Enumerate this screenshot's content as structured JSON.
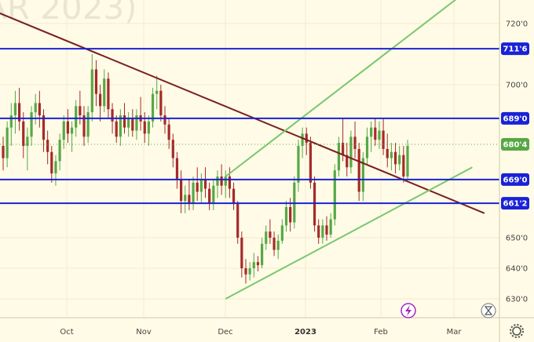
{
  "watermark": "AR 2023)",
  "chart_data": {
    "type": "candlestick",
    "y_ticks": [
      {
        "value": 720,
        "label": "720'0"
      },
      {
        "value": 700,
        "label": "700'0"
      },
      {
        "value": 650,
        "label": "650'0"
      },
      {
        "value": 640,
        "label": "640'0"
      },
      {
        "value": 630,
        "label": "630'0"
      }
    ],
    "ylim": [
      624,
      725
    ],
    "x_ticks": [
      {
        "label": "Oct",
        "bold": false
      },
      {
        "label": "Nov",
        "bold": false
      },
      {
        "label": "Dec",
        "bold": false
      },
      {
        "label": "2023",
        "bold": true
      },
      {
        "label": "Feb",
        "bold": false
      },
      {
        "label": "Mar",
        "bold": false
      }
    ],
    "levels": [
      {
        "value": 711.75,
        "label": "711'6",
        "color": "#1a22d6"
      },
      {
        "value": 689,
        "label": "689'0",
        "color": "#1a22d6"
      },
      {
        "value": 669,
        "label": "669'0",
        "color": "#1a22d6"
      },
      {
        "value": 661.25,
        "label": "661'2",
        "color": "#1a22d6"
      }
    ],
    "last_price": {
      "value": 680.5,
      "label": "680'4",
      "color": "#57a845"
    },
    "colors": {
      "up": "#57a845",
      "down": "#a52a2a",
      "trendline": "#7a1f1f",
      "channel": "#78c86e"
    },
    "ohlc": [
      [
        680,
        683,
        672,
        676
      ],
      [
        676,
        688,
        673,
        686
      ],
      [
        686,
        694,
        680,
        690
      ],
      [
        690,
        698,
        684,
        694
      ],
      [
        694,
        699,
        685,
        688
      ],
      [
        688,
        691,
        676,
        680
      ],
      [
        680,
        686,
        672,
        683
      ],
      [
        683,
        693,
        680,
        691
      ],
      [
        691,
        697,
        687,
        694
      ],
      [
        694,
        698,
        686,
        690
      ],
      [
        690,
        692,
        678,
        682
      ],
      [
        682,
        685,
        674,
        678
      ],
      [
        678,
        680,
        668,
        671
      ],
      [
        671,
        677,
        667,
        675
      ],
      [
        675,
        684,
        672,
        682
      ],
      [
        682,
        690,
        679,
        688
      ],
      [
        688,
        692,
        681,
        684
      ],
      [
        684,
        688,
        678,
        686
      ],
      [
        686,
        695,
        683,
        693
      ],
      [
        693,
        698,
        687,
        690
      ],
      [
        690,
        693,
        680,
        683
      ],
      [
        683,
        693,
        681,
        691
      ],
      [
        691,
        710,
        688,
        705
      ],
      [
        705,
        708,
        693,
        697
      ],
      [
        697,
        700,
        688,
        693
      ],
      [
        693,
        705,
        691,
        702
      ],
      [
        702,
        704,
        689,
        692
      ],
      [
        692,
        694,
        684,
        688
      ],
      [
        688,
        690,
        681,
        683
      ],
      [
        683,
        692,
        680,
        690
      ],
      [
        690,
        694,
        684,
        686
      ],
      [
        686,
        691,
        683,
        689
      ],
      [
        689,
        692,
        683,
        685
      ],
      [
        685,
        692,
        682,
        690
      ],
      [
        690,
        696,
        685,
        688
      ],
      [
        688,
        691,
        681,
        684
      ],
      [
        684,
        690,
        680,
        688
      ],
      [
        688,
        699,
        686,
        697
      ],
      [
        697,
        703,
        692,
        698
      ],
      [
        698,
        700,
        688,
        690
      ],
      [
        690,
        693,
        684,
        687
      ],
      [
        687,
        689,
        679,
        682
      ],
      [
        682,
        684,
        673,
        676
      ],
      [
        676,
        678,
        666,
        669
      ],
      [
        669,
        672,
        658,
        662
      ],
      [
        662,
        667,
        658,
        664
      ],
      [
        664,
        669,
        659,
        661
      ],
      [
        661,
        670,
        659,
        668
      ],
      [
        668,
        673,
        662,
        665
      ],
      [
        665,
        671,
        661,
        669
      ],
      [
        669,
        673,
        663,
        666
      ],
      [
        666,
        668,
        659,
        661
      ],
      [
        661,
        669,
        659,
        667
      ],
      [
        667,
        672,
        663,
        670
      ],
      [
        670,
        674,
        664,
        667
      ],
      [
        667,
        672,
        663,
        670
      ],
      [
        670,
        673,
        663,
        666
      ],
      [
        666,
        668,
        659,
        661
      ],
      [
        661,
        662,
        648,
        650
      ],
      [
        650,
        652,
        637,
        640
      ],
      [
        640,
        643,
        635,
        638
      ],
      [
        638,
        642,
        636,
        640
      ],
      [
        640,
        645,
        637,
        642
      ],
      [
        642,
        644,
        639,
        641
      ],
      [
        641,
        650,
        640,
        648
      ],
      [
        648,
        654,
        646,
        652
      ],
      [
        652,
        656,
        648,
        650
      ],
      [
        650,
        652,
        644,
        646
      ],
      [
        646,
        651,
        643,
        649
      ],
      [
        649,
        656,
        648,
        654
      ],
      [
        654,
        662,
        652,
        660
      ],
      [
        660,
        663,
        652,
        655
      ],
      [
        655,
        670,
        653,
        668
      ],
      [
        668,
        682,
        665,
        680
      ],
      [
        680,
        686,
        676,
        684
      ],
      [
        684,
        686,
        677,
        681
      ],
      [
        681,
        683,
        666,
        668
      ],
      [
        668,
        670,
        652,
        654
      ],
      [
        654,
        656,
        648,
        650
      ],
      [
        650,
        656,
        648,
        654
      ],
      [
        654,
        657,
        649,
        651
      ],
      [
        651,
        658,
        650,
        656
      ],
      [
        656,
        674,
        654,
        672
      ],
      [
        672,
        683,
        670,
        681
      ],
      [
        681,
        689,
        675,
        677
      ],
      [
        677,
        681,
        670,
        673
      ],
      [
        673,
        685,
        671,
        683
      ],
      [
        683,
        688,
        676,
        679
      ],
      [
        679,
        681,
        662,
        665
      ],
      [
        665,
        678,
        662,
        676
      ],
      [
        676,
        686,
        674,
        683
      ],
      [
        683,
        688,
        678,
        686
      ],
      [
        686,
        689,
        680,
        682
      ],
      [
        682,
        688,
        679,
        685
      ],
      [
        685,
        689,
        677,
        679
      ],
      [
        679,
        684,
        673,
        676
      ],
      [
        676,
        681,
        672,
        678
      ],
      [
        678,
        681,
        671,
        674
      ],
      [
        674,
        680,
        672,
        677
      ],
      [
        677,
        680,
        668,
        670
      ],
      [
        670,
        682,
        669,
        680
      ]
    ]
  }
}
